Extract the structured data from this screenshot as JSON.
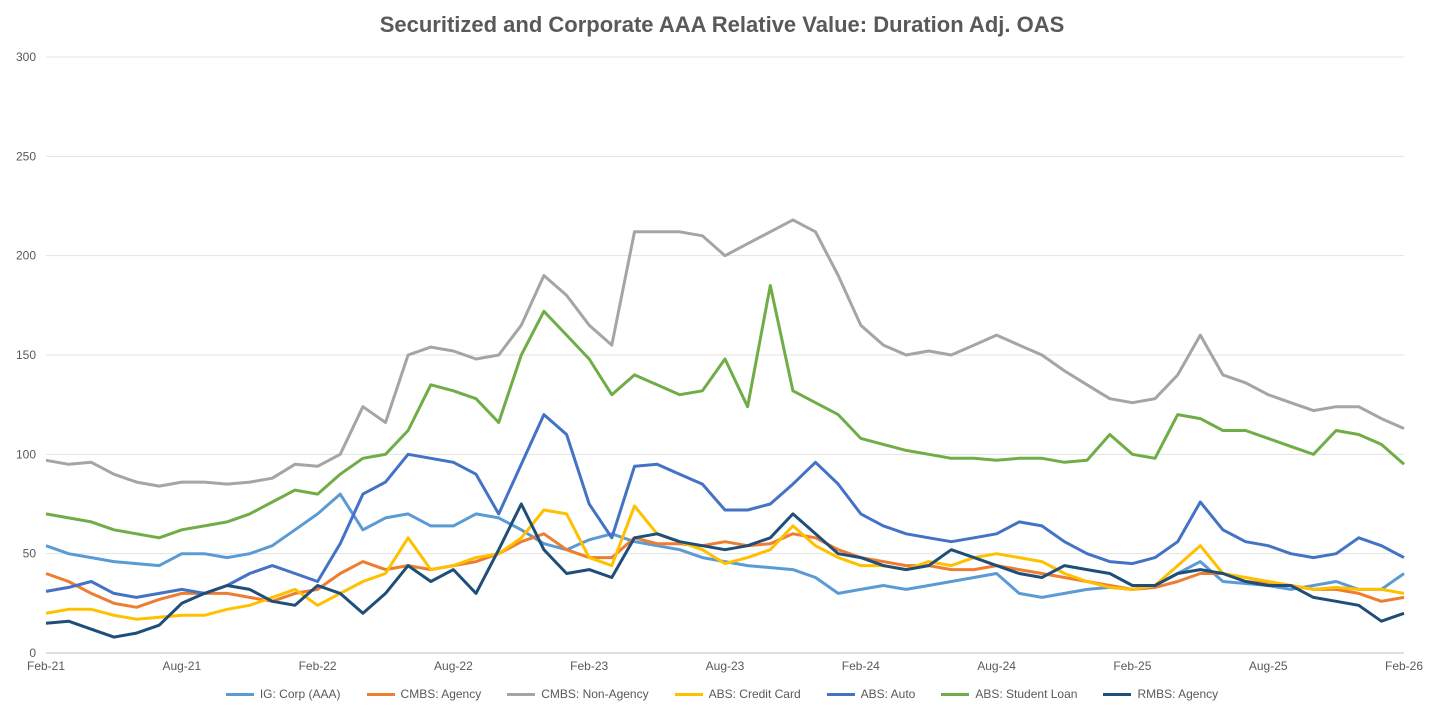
{
  "chart_data": {
    "type": "line",
    "title": "Securitized and Corporate AAA Relative Value: Duration Adj. OAS",
    "xlabel": "",
    "ylabel": "",
    "ylim": [
      0,
      300
    ],
    "yticks": [
      "0",
      "50",
      "100",
      "150",
      "200",
      "250",
      "300"
    ],
    "xticks": [
      "Feb-21",
      "Aug-21",
      "Feb-22",
      "Aug-22",
      "Feb-23",
      "Aug-23",
      "Feb-24",
      "Aug-24",
      "Feb-25",
      "Aug-25",
      "Feb-26"
    ],
    "grid": true,
    "legend_position": "bottom",
    "x": [
      "Feb-21",
      "Mar-21",
      "Apr-21",
      "May-21",
      "Jun-21",
      "Jul-21",
      "Aug-21",
      "Sep-21",
      "Oct-21",
      "Nov-21",
      "Dec-21",
      "Jan-22",
      "Feb-22",
      "Mar-22",
      "Apr-22",
      "May-22",
      "Jun-22",
      "Jul-22",
      "Aug-22",
      "Sep-22",
      "Oct-22",
      "Nov-22",
      "Dec-22",
      "Jan-23",
      "Feb-23",
      "Mar-23",
      "Apr-23",
      "May-23",
      "Jun-23",
      "Jul-23",
      "Aug-23",
      "Sep-23",
      "Oct-23",
      "Nov-23",
      "Dec-23",
      "Jan-24",
      "Feb-24",
      "Mar-24",
      "Apr-24",
      "May-24",
      "Jun-24",
      "Jul-24",
      "Aug-24",
      "Sep-24",
      "Oct-24",
      "Nov-24",
      "Dec-24",
      "Jan-25",
      "Feb-25",
      "Mar-25",
      "Apr-25",
      "May-25",
      "Jun-25",
      "Jul-25",
      "Aug-25",
      "Sep-25",
      "Oct-25",
      "Nov-25",
      "Dec-25",
      "Jan-26",
      "Feb-26"
    ],
    "series": [
      {
        "name": "IG: Corp (AAA)",
        "color": "#5B9BD5",
        "values": [
          54,
          50,
          48,
          46,
          45,
          44,
          50,
          50,
          48,
          50,
          54,
          62,
          70,
          80,
          62,
          68,
          70,
          64,
          64,
          70,
          68,
          62,
          55,
          52,
          57,
          60,
          56,
          54,
          52,
          48,
          46,
          44,
          43,
          42,
          38,
          30,
          32,
          34,
          32,
          34,
          36,
          38,
          40,
          30,
          28,
          30,
          32,
          33,
          32,
          34,
          40,
          46,
          36,
          35,
          34,
          32,
          34,
          36,
          32,
          32,
          40
        ]
      },
      {
        "name": "CMBS: Agency",
        "color": "#ED7D31",
        "values": [
          40,
          36,
          30,
          25,
          23,
          27,
          30,
          30,
          30,
          28,
          26,
          30,
          32,
          40,
          46,
          42,
          44,
          42,
          44,
          46,
          50,
          56,
          60,
          52,
          48,
          48,
          58,
          55,
          55,
          54,
          56,
          54,
          55,
          60,
          58,
          52,
          48,
          46,
          44,
          44,
          42,
          42,
          44,
          42,
          40,
          38,
          36,
          34,
          32,
          33,
          36,
          40,
          40,
          36,
          35,
          34,
          32,
          32,
          30,
          26,
          28
        ]
      },
      {
        "name": "CMBS: Non-Agency",
        "color": "#A5A5A5",
        "values": [
          97,
          95,
          96,
          90,
          86,
          84,
          86,
          86,
          85,
          86,
          88,
          95,
          94,
          100,
          124,
          116,
          150,
          154,
          152,
          148,
          150,
          165,
          190,
          180,
          165,
          155,
          212,
          212,
          212,
          210,
          200,
          206,
          212,
          218,
          212,
          190,
          165,
          155,
          150,
          152,
          150,
          155,
          160,
          155,
          150,
          142,
          135,
          128,
          126,
          128,
          140,
          160,
          140,
          136,
          130,
          126,
          122,
          124,
          124,
          118,
          113
        ]
      },
      {
        "name": "ABS: Credit Card",
        "color": "#FFC000",
        "values": [
          20,
          22,
          22,
          19,
          17,
          18,
          19,
          19,
          22,
          24,
          28,
          32,
          24,
          30,
          36,
          40,
          58,
          42,
          44,
          48,
          50,
          58,
          72,
          70,
          48,
          44,
          74,
          60,
          56,
          52,
          45,
          48,
          52,
          64,
          54,
          48,
          44,
          44,
          42,
          46,
          44,
          48,
          50,
          48,
          46,
          40,
          36,
          33,
          32,
          34,
          44,
          54,
          40,
          38,
          36,
          34,
          32,
          33,
          32,
          32,
          30
        ]
      },
      {
        "name": "ABS: Auto",
        "color": "#4472C4",
        "values": [
          31,
          33,
          36,
          30,
          28,
          30,
          32,
          30,
          34,
          40,
          44,
          40,
          36,
          55,
          80,
          86,
          100,
          98,
          96,
          90,
          70,
          95,
          120,
          110,
          75,
          58,
          94,
          95,
          90,
          85,
          72,
          72,
          75,
          85,
          96,
          85,
          70,
          64,
          60,
          58,
          56,
          58,
          60,
          66,
          64,
          56,
          50,
          46,
          45,
          48,
          56,
          76,
          62,
          56,
          54,
          50,
          48,
          50,
          58,
          54,
          48
        ]
      },
      {
        "name": "ABS: Student Loan",
        "color": "#70AD47",
        "values": [
          70,
          68,
          66,
          62,
          60,
          58,
          62,
          64,
          66,
          70,
          76,
          82,
          80,
          90,
          98,
          100,
          112,
          135,
          132,
          128,
          116,
          150,
          172,
          160,
          148,
          130,
          140,
          135,
          130,
          132,
          148,
          124,
          185,
          132,
          126,
          120,
          108,
          105,
          102,
          100,
          98,
          98,
          97,
          98,
          98,
          96,
          97,
          110,
          100,
          98,
          120,
          118,
          112,
          112,
          108,
          104,
          100,
          112,
          110,
          105,
          95
        ]
      },
      {
        "name": "RMBS: Agency",
        "color": "#1F4E79",
        "values": [
          15,
          16,
          12,
          8,
          10,
          14,
          25,
          30,
          34,
          32,
          26,
          24,
          34,
          30,
          20,
          30,
          44,
          36,
          42,
          30,
          52,
          75,
          52,
          40,
          42,
          38,
          58,
          60,
          56,
          54,
          52,
          54,
          58,
          70,
          60,
          50,
          48,
          44,
          42,
          44,
          52,
          48,
          44,
          40,
          38,
          44,
          42,
          40,
          34,
          34,
          40,
          42,
          40,
          36,
          34,
          34,
          28,
          26,
          24,
          16,
          20
        ]
      }
    ]
  }
}
